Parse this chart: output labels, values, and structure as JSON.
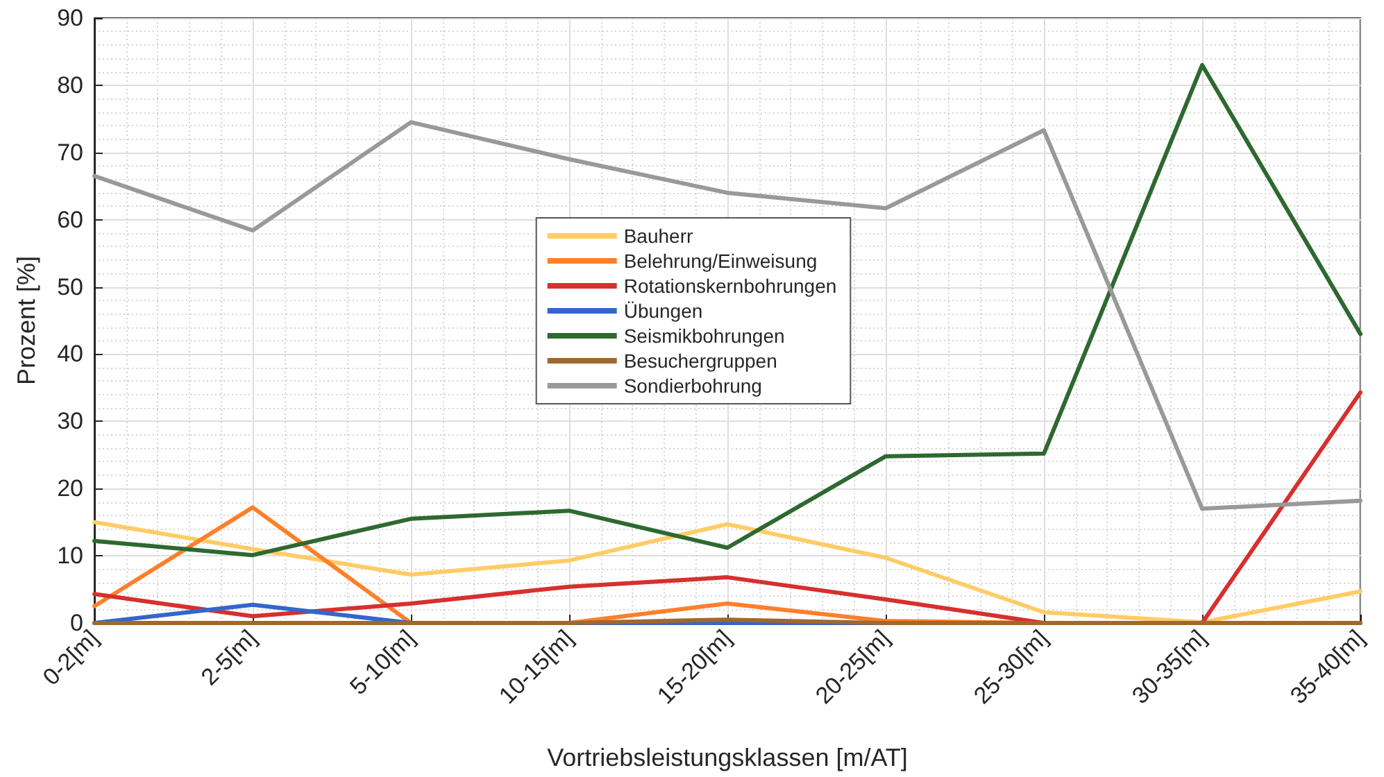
{
  "chart_data": {
    "type": "line",
    "xlabel": "Vortriebsleistungsklassen [m/AT]",
    "ylabel": "Prozent [%]",
    "categories": [
      "0-2[m]",
      "2-5[m]",
      "5-10[m]",
      "10-15[m]",
      "15-20[m]",
      "20-25[m]",
      "25-30[m]",
      "30-35[m]",
      "35-40[m]"
    ],
    "series": [
      {
        "name": "Bauherr",
        "color": "#ffcc66",
        "values": [
          15,
          11,
          7.2,
          9.3,
          14.7,
          9.7,
          1.6,
          0.1,
          4.7
        ]
      },
      {
        "name": "Belehrung/Einweisung",
        "color": "#ff7f2a",
        "values": [
          2.5,
          17.2,
          0,
          0,
          2.9,
          0.3,
          0,
          0,
          0
        ]
      },
      {
        "name": "Rotationskernbohrungen",
        "color": "#d6302f",
        "values": [
          4.3,
          1,
          2.9,
          5.4,
          6.8,
          3.5,
          0,
          0,
          34.3
        ]
      },
      {
        "name": "Übungen",
        "color": "#3366cc",
        "values": [
          0,
          2.7,
          0,
          0,
          0,
          0,
          0,
          null,
          null
        ]
      },
      {
        "name": "Seismikbohrungen",
        "color": "#2e6930",
        "values": [
          12.2,
          10.1,
          15.5,
          16.7,
          11.2,
          24.8,
          25.2,
          83,
          43
        ]
      },
      {
        "name": "Besuchergruppen",
        "color": "#a0672e",
        "values": [
          0,
          0,
          0,
          0,
          0.5,
          0,
          0,
          0,
          0
        ]
      },
      {
        "name": "Sondierbohrung",
        "color": "#999999",
        "values": [
          66.5,
          58.4,
          74.5,
          69,
          64,
          61.7,
          73.3,
          17,
          18.2
        ]
      }
    ],
    "ylim": [
      0,
      90
    ],
    "yticks": [
      0,
      10,
      20,
      30,
      40,
      50,
      60,
      70,
      80,
      90
    ],
    "grid": true,
    "legend": "center"
  }
}
